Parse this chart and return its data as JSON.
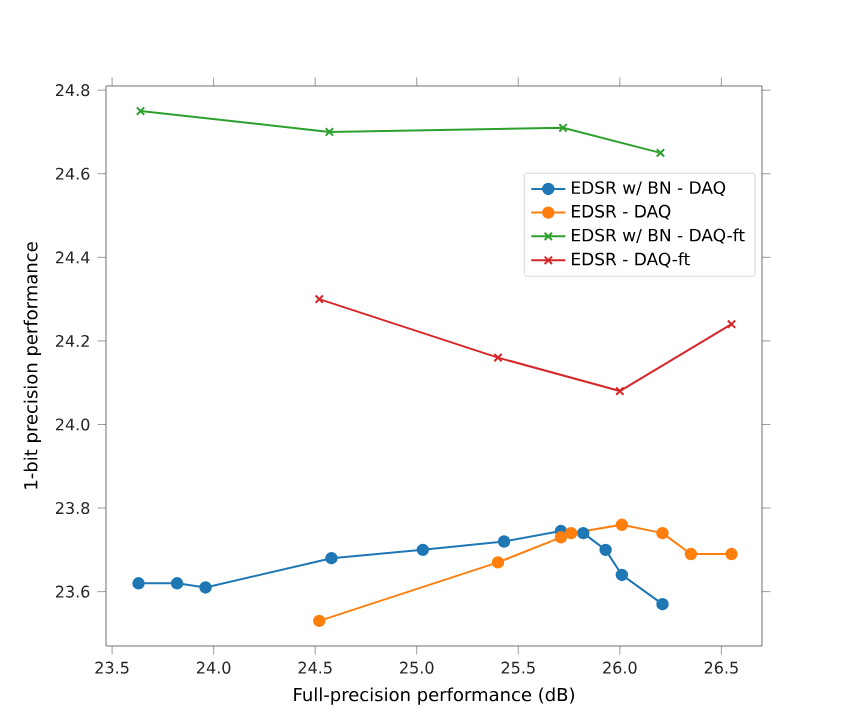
{
  "chart_data": {
    "type": "line",
    "xlabel": "Full-precision performance (dB)",
    "ylabel": "1-bit precision performance",
    "xlim": [
      23.47,
      26.7
    ],
    "ylim": [
      23.47,
      24.81
    ],
    "xticks": [
      {
        "value": 23.5,
        "label": "23.5"
      },
      {
        "value": 24.0,
        "label": "24.0"
      },
      {
        "value": 24.5,
        "label": "24.5"
      },
      {
        "value": 25.0,
        "label": "25.0"
      },
      {
        "value": 25.5,
        "label": "25.5"
      },
      {
        "value": 26.0,
        "label": "26.0"
      },
      {
        "value": 26.5,
        "label": "26.5"
      }
    ],
    "yticks": [
      23.6,
      23.8,
      {
        "value": 24.0,
        "label": "24.0"
      },
      24.2,
      24.4,
      24.6,
      24.8
    ],
    "legend": "right",
    "grid": false,
    "series": [
      {
        "name": "EDSR w/ BN - DAQ",
        "color": "#1f77b4",
        "marker": "circle",
        "x": [
          23.63,
          23.82,
          23.96,
          24.58,
          25.03,
          25.43,
          25.71,
          25.82,
          25.93,
          26.01,
          26.21
        ],
        "values": [
          23.62,
          23.62,
          23.61,
          23.68,
          23.7,
          23.72,
          23.745,
          23.74,
          23.7,
          23.64,
          23.57
        ]
      },
      {
        "name": "EDSR - DAQ",
        "color": "#ff7f0e",
        "marker": "circle",
        "x": [
          24.52,
          25.4,
          25.71,
          25.76,
          26.01,
          26.21,
          26.35,
          26.55
        ],
        "values": [
          23.53,
          23.67,
          23.73,
          23.74,
          23.76,
          23.74,
          23.69,
          23.69
        ]
      },
      {
        "name": "EDSR w/ BN - DAQ-ft",
        "color": "#2ca02c",
        "marker": "cross",
        "x": [
          23.64,
          24.57,
          25.72,
          26.2
        ],
        "values": [
          24.75,
          24.7,
          24.71,
          24.65
        ]
      },
      {
        "name": "EDSR - DAQ-ft",
        "color": "#d62728",
        "marker": "cross",
        "x": [
          24.52,
          25.4,
          26.0,
          26.55
        ],
        "values": [
          24.3,
          24.16,
          24.08,
          24.24
        ]
      }
    ]
  }
}
